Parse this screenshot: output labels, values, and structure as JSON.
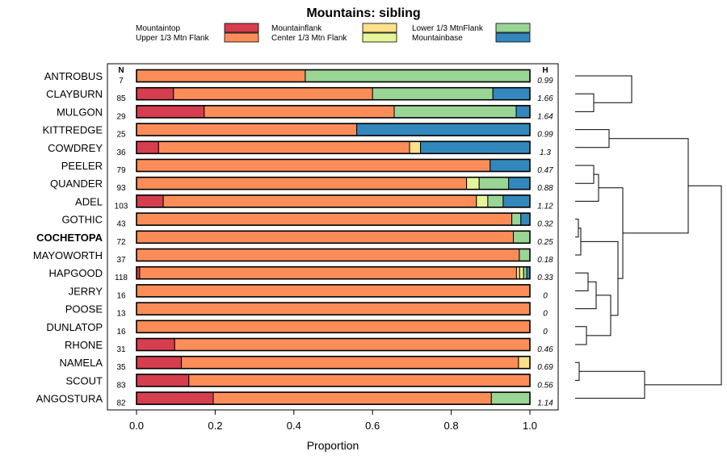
{
  "chart_data": {
    "type": "bar",
    "orientation": "horizontal",
    "stacked": true,
    "title": "Mountains: sibling",
    "xlabel": "Proportion",
    "ylabel": "",
    "xlim": [
      0,
      1
    ],
    "x_ticks": [
      "0.0",
      "0.2",
      "0.4",
      "0.6",
      "0.8",
      "1.0"
    ],
    "n_header": "N",
    "h_header": "H",
    "highlight_category": "COCHETOPA",
    "legend": [
      {
        "key": "mountaintop",
        "label": "Mountaintop",
        "color": "#d53e4f"
      },
      {
        "key": "upper",
        "label": "Upper 1/3 Mtn Flank",
        "color": "#fc8d59"
      },
      {
        "key": "mountainflank",
        "label": "Mountainflank",
        "color": "#fee08b"
      },
      {
        "key": "center",
        "label": "Center 1/3 Mtn Flank",
        "color": "#e6f598"
      },
      {
        "key": "lower",
        "label": "Lower 1/3 MtnFlank",
        "color": "#99d594"
      },
      {
        "key": "base",
        "label": "Mountainbase",
        "color": "#3288bd"
      }
    ],
    "categories": [
      "ANTROBUS",
      "CLAYBURN",
      "MULGON",
      "KITTREDGE",
      "COWDREY",
      "PEELER",
      "QUANDER",
      "ADEL",
      "GOTHIC",
      "COCHETOPA",
      "MAYOWORTH",
      "HAPGOOD",
      "JERRY",
      "POOSE",
      "DUNLATOP",
      "RHONE",
      "NAMELA",
      "SCOUT",
      "ANGOSTURA"
    ],
    "n_values": [
      7,
      85,
      29,
      25,
      36,
      79,
      93,
      103,
      43,
      72,
      37,
      118,
      16,
      13,
      16,
      31,
      35,
      83,
      82
    ],
    "h_values": [
      "0.99",
      "1.66",
      "1.64",
      "0.99",
      "1.3",
      "0.47",
      "0.88",
      "1.12",
      "0.32",
      "0.25",
      "0.18",
      "0.33",
      "0",
      "0",
      "0",
      "0.46",
      "0.69",
      "0.56",
      "1.14"
    ],
    "series": [
      {
        "name": "Mountaintop",
        "values": [
          0,
          0.094,
          0.172,
          0,
          0.056,
          0,
          0,
          0.068,
          0,
          0,
          0,
          0.008,
          0,
          0,
          0,
          0.097,
          0.114,
          0.133,
          0.195
        ]
      },
      {
        "name": "Upper 1/3 Mtn Flank",
        "values": [
          0.429,
          0.506,
          0.483,
          0.56,
          0.638,
          0.899,
          0.839,
          0.796,
          0.954,
          0.958,
          0.973,
          0.958,
          1,
          1,
          1,
          0.903,
          0.857,
          0.867,
          0.707
        ]
      },
      {
        "name": "Mountainflank",
        "values": [
          0,
          0,
          0,
          0,
          0.028,
          0,
          0,
          0,
          0,
          0,
          0,
          0.008,
          0,
          0,
          0,
          0,
          0.029,
          0,
          0
        ]
      },
      {
        "name": "Center 1/3 Mtn Flank",
        "values": [
          0,
          0,
          0,
          0,
          0,
          0,
          0.032,
          0.029,
          0,
          0,
          0,
          0.01,
          0,
          0,
          0,
          0,
          0,
          0,
          0
        ]
      },
      {
        "name": "Lower 1/3 MtnFlank",
        "values": [
          0.571,
          0.306,
          0.31,
          0,
          0,
          0,
          0.075,
          0.039,
          0.023,
          0.042,
          0.027,
          0.008,
          0,
          0,
          0,
          0,
          0,
          0,
          0.098
        ]
      },
      {
        "name": "Mountainbase",
        "values": [
          0,
          0.094,
          0.035,
          0.44,
          0.278,
          0.101,
          0.054,
          0.068,
          0.023,
          0,
          0,
          0.008,
          0,
          0,
          0,
          0,
          0,
          0,
          0
        ]
      }
    ],
    "dendrogram_present": true
  }
}
